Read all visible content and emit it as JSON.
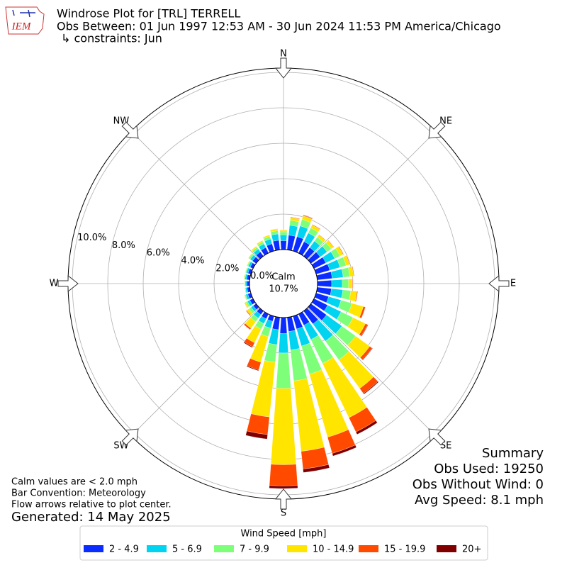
{
  "chart_data": {
    "type": "windrose",
    "logo": "IEM",
    "title": "Windrose Plot for [TRL] TERRELL",
    "subtitle": "Obs Between: 01 Jun 1997 12:53 AM - 30 Jun 2024 11:53 PM America/Chicago",
    "constraints": "↳ constraints: Jun",
    "x": [
      0,
      10,
      20,
      30,
      40,
      50,
      60,
      70,
      80,
      90,
      100,
      110,
      120,
      130,
      140,
      150,
      160,
      170,
      180,
      190,
      200,
      210,
      220,
      230,
      240,
      250,
      260,
      270,
      280,
      290,
      300,
      310,
      320,
      330,
      340,
      350
    ],
    "xlim": [
      0,
      360
    ],
    "xticks": [
      {
        "value": 0,
        "label": "N"
      },
      {
        "value": 45,
        "label": "NE"
      },
      {
        "value": 90,
        "label": "E"
      },
      {
        "value": 135,
        "label": "SE"
      },
      {
        "value": 180,
        "label": "S"
      },
      {
        "value": 225,
        "label": "SW"
      },
      {
        "value": 270,
        "label": "W"
      },
      {
        "value": 315,
        "label": "NW"
      }
    ],
    "ylim": [
      0,
      10.24
    ],
    "yticks": [
      {
        "value": 0,
        "label": "0.0%"
      },
      {
        "value": 2,
        "label": "2.0%"
      },
      {
        "value": 4,
        "label": "4.0%"
      },
      {
        "value": 6,
        "label": "6.0%"
      },
      {
        "value": 8,
        "label": "8.0%"
      },
      {
        "value": 10,
        "label": "10.0%"
      }
    ],
    "grid": true,
    "calm": {
      "label": "Calm",
      "value": 10.7,
      "value_label": "10.7%"
    },
    "legend_title": "Wind Speed [mph]",
    "series": [
      {
        "name": "2 - 4.9",
        "color": "#0a2cff",
        "values": [
          0.5,
          0.83,
          0.84,
          0.72,
          0.6,
          0.64,
          0.74,
          0.8,
          0.84,
          0.8,
          0.8,
          0.73,
          0.85,
          1.08,
          0.9,
          0.7,
          0.75,
          0.8,
          0.9,
          0.7,
          0.3,
          0.3,
          0.25,
          0.2,
          0.2,
          0.18,
          0.15,
          0.15,
          0.17,
          0.17,
          0.18,
          0.25,
          0.3,
          0.35,
          0.42,
          0.54
        ]
      },
      {
        "name": "5 - 6.9",
        "color": "#00d4f0",
        "values": [
          0.33,
          0.56,
          0.63,
          0.54,
          0.45,
          0.48,
          0.56,
          0.6,
          0.63,
          0.6,
          0.65,
          0.73,
          0.85,
          1.08,
          1.2,
          0.9,
          1.0,
          1.05,
          1.1,
          0.85,
          0.4,
          0.3,
          0.25,
          0.15,
          0.15,
          0.12,
          0.09,
          0.09,
          0.1,
          0.1,
          0.12,
          0.16,
          0.2,
          0.23,
          0.28,
          0.36
        ]
      },
      {
        "name": "7 - 9.9",
        "color": "#7dff7a",
        "values": [
          0.17,
          0.28,
          0.38,
          0.32,
          0.27,
          0.29,
          0.33,
          0.36,
          0.38,
          0.36,
          0.45,
          0.64,
          0.75,
          0.95,
          1.3,
          1.5,
          1.65,
          1.75,
          2.0,
          1.0,
          0.5,
          0.35,
          0.25,
          0.15,
          0.1,
          0.06,
          0.04,
          0.04,
          0.05,
          0.05,
          0.06,
          0.09,
          0.12,
          0.13,
          0.15,
          0.18
        ]
      },
      {
        "name": "10 - 14.9",
        "color": "#ffe500",
        "values": [
          0.09,
          0.15,
          0.21,
          0.18,
          0.15,
          0.16,
          0.19,
          0.2,
          0.21,
          0.2,
          0.35,
          0.67,
          0.78,
          0.99,
          2.0,
          3.4,
          3.7,
          4.0,
          4.3,
          3.1,
          1.5,
          0.85,
          0.45,
          0.15,
          0.08,
          0.04,
          0.02,
          0.02,
          0.03,
          0.03,
          0.04,
          0.05,
          0.07,
          0.08,
          0.09,
          0.1
        ]
      },
      {
        "name": "15 - 19.9",
        "color": "#ff4a00",
        "values": [
          0.02,
          0.04,
          0.04,
          0.04,
          0.03,
          0.03,
          0.04,
          0.04,
          0.04,
          0.04,
          0.05,
          0.12,
          0.14,
          0.17,
          0.35,
          0.9,
          0.95,
          1.0,
          1.2,
          1.0,
          0.45,
          0.25,
          0.1,
          0.05,
          0.02,
          0,
          0,
          0,
          0,
          0,
          0,
          0,
          0.01,
          0.01,
          0.01,
          0.02
        ]
      },
      {
        "name": "20+",
        "color": "#800000",
        "values": [
          0,
          0,
          0.02,
          0,
          0,
          0,
          0,
          0,
          0,
          0,
          0,
          0.01,
          0.03,
          0.03,
          0.05,
          0.15,
          0.15,
          0.2,
          0.15,
          0.25,
          0.05,
          0.05,
          0,
          0,
          0,
          0,
          0,
          0,
          0,
          0,
          0,
          0,
          0,
          0,
          0,
          0
        ]
      }
    ],
    "summary": [
      "Summary",
      "Obs Used: 19250",
      "Obs Without Wind: 0",
      "Avg Speed: 8.1 mph"
    ],
    "notes": [
      "Calm values are < 2.0 mph",
      "Bar Convention: Meteorology",
      "Flow arrows relative to plot center."
    ],
    "generated": "Generated: 14 May 2025"
  }
}
